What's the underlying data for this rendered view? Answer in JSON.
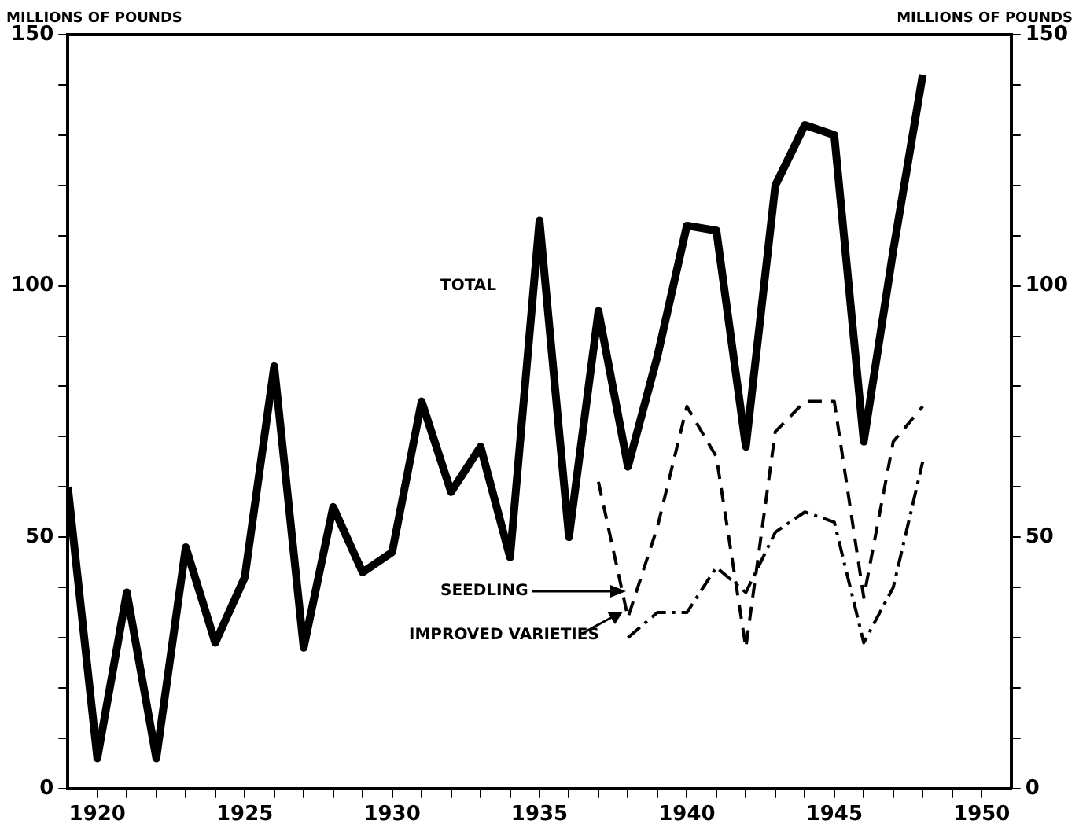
{
  "chart_data": {
    "type": "line",
    "ylabel": "MILLIONS OF POUNDS",
    "y2label": "MILLIONS OF POUNDS",
    "xlim": [
      1919,
      1951
    ],
    "xticks": [
      {
        "value": 1920,
        "label": "1920"
      },
      {
        "value": 1921,
        "label": null
      },
      {
        "value": 1922,
        "label": null
      },
      {
        "value": 1923,
        "label": null
      },
      {
        "value": 1924,
        "label": null
      },
      {
        "value": 1925,
        "label": "1925"
      },
      {
        "value": 1926,
        "label": null
      },
      {
        "value": 1927,
        "label": null
      },
      {
        "value": 1928,
        "label": null
      },
      {
        "value": 1929,
        "label": null
      },
      {
        "value": 1930,
        "label": "1930"
      },
      {
        "value": 1931,
        "label": null
      },
      {
        "value": 1932,
        "label": null
      },
      {
        "value": 1933,
        "label": null
      },
      {
        "value": 1934,
        "label": null
      },
      {
        "value": 1935,
        "label": "1935"
      },
      {
        "value": 1936,
        "label": null
      },
      {
        "value": 1937,
        "label": null
      },
      {
        "value": 1938,
        "label": null
      },
      {
        "value": 1939,
        "label": null
      },
      {
        "value": 1940,
        "label": "1940"
      },
      {
        "value": 1941,
        "label": null
      },
      {
        "value": 1942,
        "label": null
      },
      {
        "value": 1943,
        "label": null
      },
      {
        "value": 1944,
        "label": null
      },
      {
        "value": 1945,
        "label": "1945"
      },
      {
        "value": 1946,
        "label": null
      },
      {
        "value": 1947,
        "label": null
      },
      {
        "value": 1948,
        "label": null
      },
      {
        "value": 1949,
        "label": null
      },
      {
        "value": 1950,
        "label": "1950"
      }
    ],
    "ylim": [
      0,
      150
    ],
    "yticks": [
      0,
      {
        "value": 10,
        "label": null
      },
      {
        "value": 20,
        "label": null
      },
      {
        "value": 30,
        "label": null
      },
      {
        "value": 40,
        "label": null
      },
      50,
      {
        "value": 60,
        "label": null
      },
      {
        "value": 70,
        "label": null
      },
      {
        "value": 80,
        "label": null
      },
      {
        "value": 90,
        "label": null
      },
      100,
      {
        "value": 110,
        "label": null
      },
      {
        "value": 120,
        "label": null
      },
      {
        "value": 130,
        "label": null
      },
      {
        "value": 140,
        "label": null
      },
      150
    ],
    "y2lim": [
      0,
      150
    ],
    "y2ticks": [
      0,
      {
        "value": 10,
        "label": null
      },
      {
        "value": 20,
        "label": null
      },
      {
        "value": 30,
        "label": null
      },
      {
        "value": 40,
        "label": null
      },
      50,
      {
        "value": 60,
        "label": null
      },
      {
        "value": 70,
        "label": null
      },
      {
        "value": 80,
        "label": null
      },
      {
        "value": 90,
        "label": null
      },
      100,
      {
        "value": 110,
        "label": null
      },
      {
        "value": 120,
        "label": null
      },
      {
        "value": 130,
        "label": null
      },
      {
        "value": 140,
        "label": null
      },
      150
    ],
    "grid": false,
    "legend": false,
    "marker": "none",
    "series": [
      {
        "color": "#000000",
        "line_style": "solid",
        "x": [
          1919,
          1920,
          1921,
          1922,
          1923,
          1924,
          1925,
          1926,
          1927,
          1928,
          1929,
          1930,
          1931,
          1932,
          1933,
          1934,
          1935,
          1936,
          1937,
          1938,
          1939,
          1940,
          1941,
          1942,
          1943,
          1944,
          1945,
          1946,
          1947,
          1948
        ],
        "values": [
          60,
          6,
          39,
          6,
          48,
          29,
          42,
          84,
          28,
          56,
          43,
          47,
          77,
          59,
          68,
          46,
          113,
          50,
          95,
          64,
          86,
          112,
          111,
          68,
          120,
          132,
          130,
          69,
          107,
          142
        ]
      },
      {
        "color": "#000000",
        "line_style": "dashed",
        "x": [
          1937,
          1938,
          1939,
          1940,
          1941,
          1942,
          1943,
          1944,
          1945,
          1946,
          1947,
          1948
        ],
        "values": [
          61,
          34,
          52,
          76,
          66,
          28,
          71,
          77,
          77,
          38,
          69,
          76
        ]
      },
      {
        "color": "#000000",
        "line_style": "dashdot",
        "x": [
          1938,
          1939,
          1940,
          1941,
          1942,
          1943,
          1944,
          1945,
          1946,
          1947,
          1948
        ],
        "values": [
          30,
          35,
          35,
          44,
          39,
          51,
          55,
          53,
          29,
          40,
          65
        ]
      }
    ],
    "annotations": [
      "TOTAL",
      "SEEDLING",
      "IMPROVED VARIETIES"
    ]
  }
}
